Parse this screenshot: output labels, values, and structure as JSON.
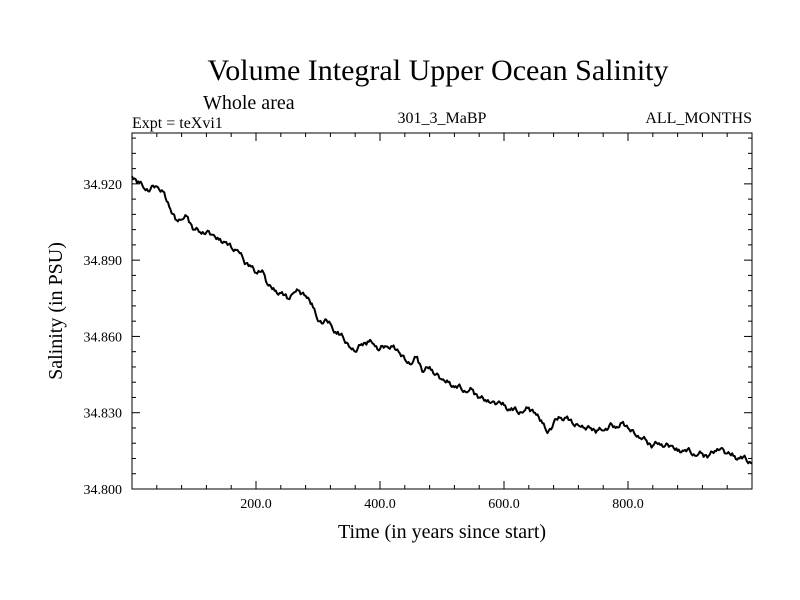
{
  "chart_data": {
    "type": "line",
    "title": "Volume Integral Upper Ocean Salinity",
    "subtitle": "Whole area",
    "header_left": "Expt = teXvi1",
    "header_center": "301_3_MaBP",
    "header_right": "ALL_MONTHS",
    "xlabel": "Time (in years since start)",
    "ylabel": "Salinity (in PSU)",
    "xlim": [
      0,
      1000
    ],
    "ylim": [
      34.8,
      34.94
    ],
    "x_ticks": [
      200,
      400,
      600,
      800
    ],
    "x_tick_labels": [
      "200.0",
      "400.0",
      "600.0",
      "800.0"
    ],
    "y_ticks": [
      34.8,
      34.83,
      34.86,
      34.89,
      34.92
    ],
    "y_tick_labels": [
      "34.800",
      "34.830",
      "34.860",
      "34.890",
      "34.920"
    ],
    "grid": false,
    "series": [
      {
        "name": "Salinity",
        "x": [
          0,
          10,
          20,
          30,
          40,
          50,
          60,
          70,
          80,
          90,
          100,
          110,
          120,
          130,
          140,
          150,
          160,
          170,
          180,
          190,
          200,
          210,
          220,
          230,
          240,
          250,
          260,
          270,
          280,
          290,
          300,
          310,
          320,
          330,
          340,
          350,
          360,
          370,
          380,
          390,
          400,
          410,
          420,
          430,
          440,
          450,
          460,
          470,
          480,
          490,
          500,
          510,
          520,
          530,
          540,
          550,
          560,
          570,
          580,
          590,
          600,
          610,
          620,
          630,
          640,
          650,
          660,
          670,
          680,
          690,
          700,
          710,
          720,
          730,
          740,
          750,
          760,
          770,
          780,
          790,
          800,
          810,
          820,
          830,
          840,
          850,
          860,
          870,
          880,
          890,
          900,
          910,
          920,
          930,
          940,
          950,
          960,
          970,
          980,
          990,
          1000
        ],
        "values": [
          34.923,
          34.921,
          34.918,
          34.918,
          34.919,
          34.917,
          34.911,
          34.906,
          34.906,
          34.907,
          34.902,
          34.901,
          34.901,
          34.9,
          34.898,
          34.897,
          34.895,
          34.894,
          34.89,
          34.888,
          34.885,
          34.886,
          34.88,
          34.878,
          34.877,
          34.875,
          34.877,
          34.878,
          34.876,
          34.873,
          34.866,
          34.866,
          34.865,
          34.861,
          34.86,
          34.856,
          34.854,
          34.857,
          34.858,
          34.857,
          34.855,
          34.856,
          34.856,
          34.854,
          34.851,
          34.849,
          34.852,
          34.846,
          34.848,
          34.845,
          34.843,
          34.842,
          34.84,
          34.84,
          34.838,
          34.839,
          34.836,
          34.835,
          34.834,
          34.834,
          34.833,
          34.831,
          34.831,
          34.83,
          34.832,
          34.83,
          34.827,
          34.822,
          34.826,
          34.828,
          34.828,
          34.826,
          34.825,
          34.824,
          34.824,
          34.823,
          34.823,
          34.825,
          34.824,
          34.826,
          34.824,
          34.822,
          34.82,
          34.819,
          34.817,
          34.818,
          34.817,
          34.817,
          34.815,
          34.815,
          34.815,
          34.813,
          34.814,
          34.813,
          34.815,
          34.816,
          34.814,
          34.813,
          34.812,
          34.812,
          34.81
        ]
      }
    ]
  }
}
